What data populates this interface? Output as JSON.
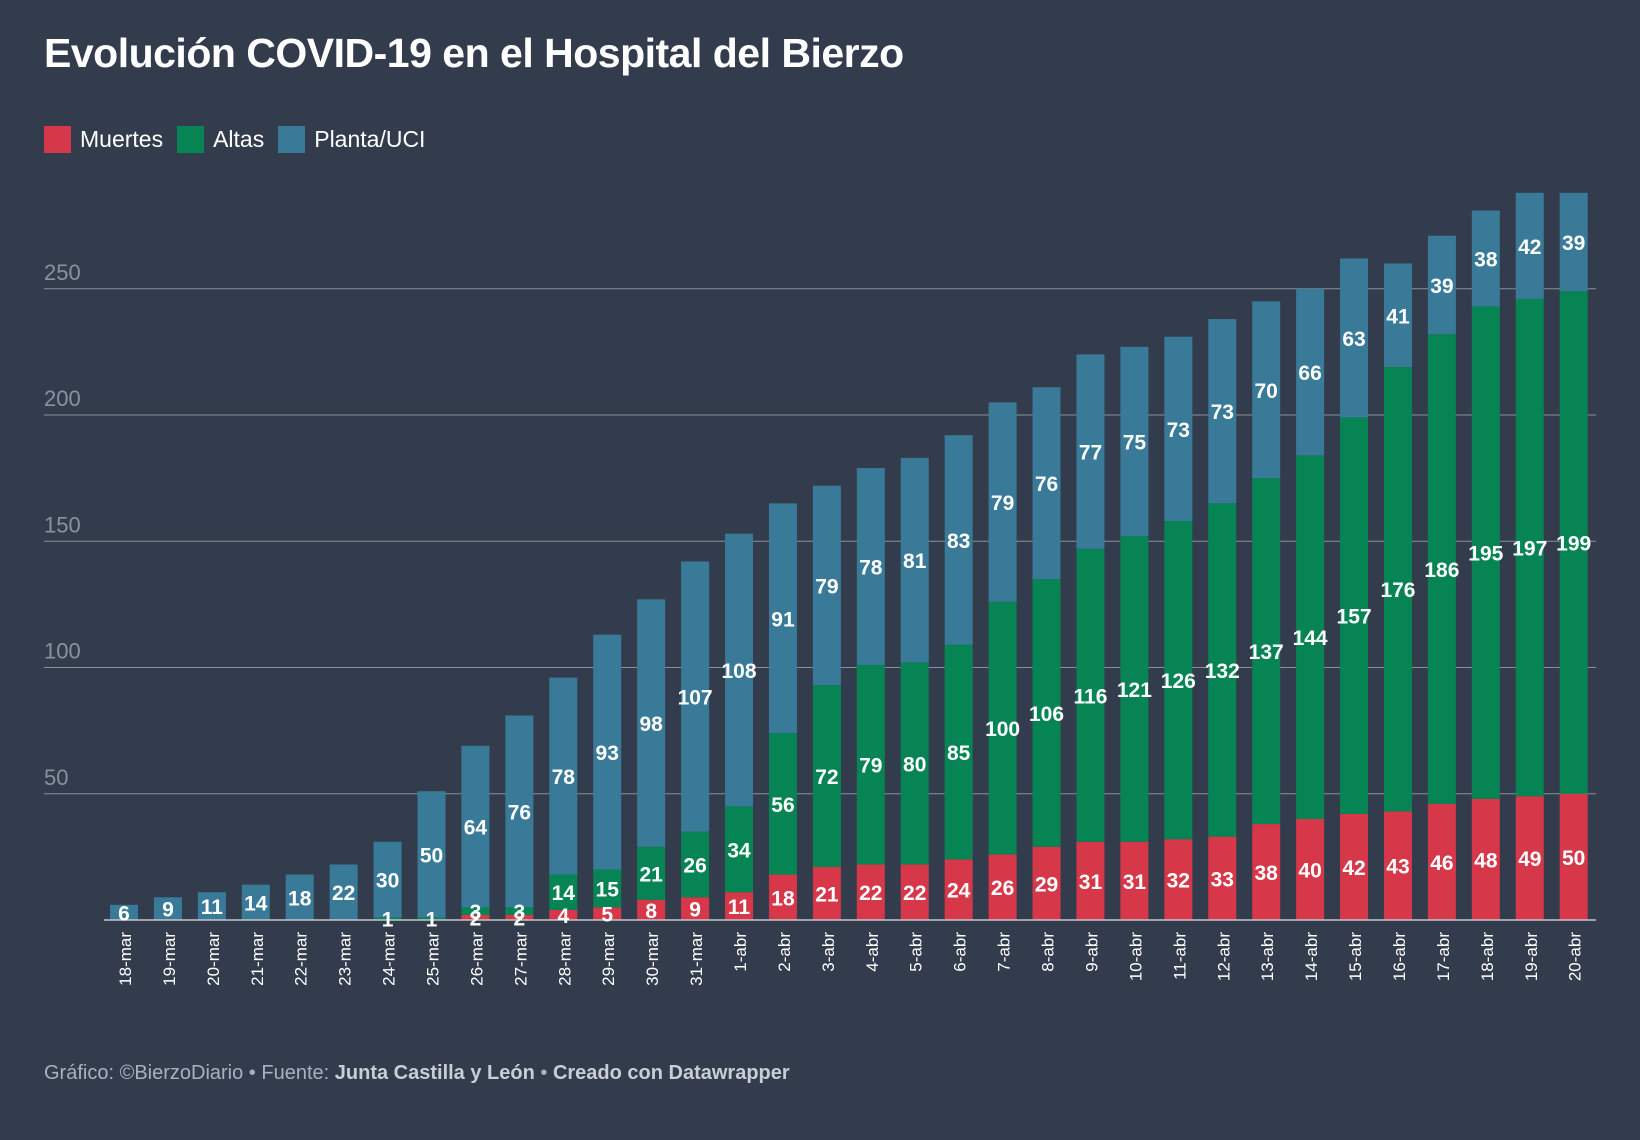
{
  "title": "Evolución COVID-19 en el Hospital del Bierzo",
  "legend": [
    {
      "label": "Muertes",
      "color": "#d6384a"
    },
    {
      "label": "Altas",
      "color": "#078453"
    },
    {
      "label": "Planta/UCI",
      "color": "#387a97"
    }
  ],
  "footer": {
    "credit_prefix": "Gráfico: ©BierzoDiario",
    "separator": " • ",
    "source_prefix": "Fuente: ",
    "source": "Junta Castilla y León",
    "created": "Creado con Datawrapper"
  },
  "chart_data": {
    "type": "bar",
    "stacked": true,
    "grid": true,
    "ylim": [
      0,
      290
    ],
    "yticks": [
      50,
      100,
      150,
      200,
      250
    ],
    "categories": [
      "18-mar",
      "19-mar",
      "20-mar",
      "21-mar",
      "22-mar",
      "23-mar",
      "24-mar",
      "25-mar",
      "26-mar",
      "27-mar",
      "28-mar",
      "29-mar",
      "30-mar",
      "31-mar",
      "1-abr",
      "2-abr",
      "3-abr",
      "4-abr",
      "5-abr",
      "6-abr",
      "7-abr",
      "8-abr",
      "9-abr",
      "10-abr",
      "11-abr",
      "12-abr",
      "13-abr",
      "14-abr",
      "15-abr",
      "16-abr",
      "17-abr",
      "18-abr",
      "19-abr",
      "20-abr"
    ],
    "series": [
      {
        "name": "Muertes",
        "color": "#d6384a",
        "values": [
          0,
          0,
          0,
          0,
          0,
          0,
          0,
          0,
          2,
          2,
          4,
          5,
          8,
          9,
          11,
          18,
          21,
          22,
          22,
          24,
          26,
          29,
          31,
          31,
          32,
          33,
          38,
          40,
          42,
          43,
          46,
          48,
          49,
          50
        ]
      },
      {
        "name": "Altas",
        "color": "#078453",
        "values": [
          0,
          0,
          0,
          0,
          0,
          0,
          1,
          1,
          3,
          3,
          14,
          15,
          21,
          26,
          34,
          56,
          72,
          79,
          80,
          85,
          100,
          106,
          116,
          121,
          126,
          132,
          137,
          144,
          157,
          176,
          186,
          195,
          197,
          199
        ]
      },
      {
        "name": "Planta/UCI",
        "color": "#387a97",
        "values": [
          6,
          9,
          11,
          14,
          18,
          22,
          30,
          50,
          64,
          76,
          78,
          93,
          98,
          107,
          108,
          91,
          79,
          78,
          81,
          83,
          79,
          76,
          77,
          75,
          73,
          73,
          70,
          66,
          63,
          41,
          39,
          38,
          42,
          39
        ]
      }
    ]
  }
}
